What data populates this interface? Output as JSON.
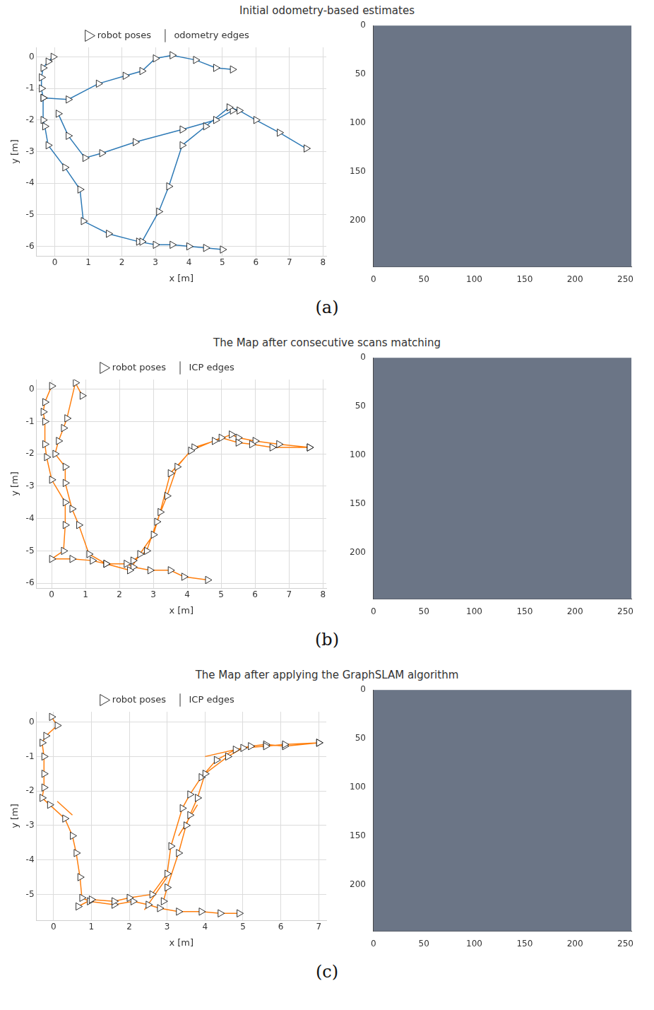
{
  "chart_data": [
    {
      "type": "line",
      "title": "Initial odometry-based estimates",
      "annotations": [
        "(a)"
      ],
      "x_label": "x [m]",
      "y_label": "y [m]",
      "xlim": [
        -0.55,
        8.1
      ],
      "ylim": [
        -6.3,
        0.3
      ],
      "xticks": [
        0,
        1,
        2,
        3,
        4,
        5,
        6,
        7,
        8
      ],
      "yticks": [
        -6,
        -5,
        -4,
        -3,
        -2,
        -1,
        0
      ],
      "grid": true,
      "legend": "top",
      "series": [
        {
          "name": "odometry edges",
          "color": "#2e7ab6",
          "marker": "none",
          "line_style": "solid",
          "x": [
            -0.05,
            -0.2,
            -0.35,
            -0.4,
            -0.4,
            -0.35,
            -0.35,
            -0.3,
            -0.2,
            0.3,
            0.75,
            0.85,
            1.6,
            2.5,
            3.0,
            3.5,
            4.0,
            4.5,
            5.0,
            null,
            -0.35,
            0.4,
            1.3,
            2.1,
            2.6,
            3.0,
            3.5,
            4.2,
            4.8,
            5.3,
            null,
            0.1,
            0.4,
            0.9,
            1.4,
            2.4,
            3.8,
            4.8,
            5.3,
            null,
            2.6,
            3.1,
            3.4,
            3.8,
            4.5,
            5.2,
            5.5,
            6.0,
            6.7,
            7.5
          ],
          "values": [
            0.0,
            -0.15,
            -0.35,
            -0.65,
            -1.0,
            -1.3,
            -2.0,
            -2.2,
            -2.8,
            -3.5,
            -4.2,
            -5.2,
            -5.6,
            -5.85,
            -5.95,
            -5.95,
            -6.0,
            -6.05,
            -6.1,
            null,
            -1.3,
            -1.35,
            -0.85,
            -0.6,
            -0.45,
            -0.05,
            0.05,
            -0.1,
            -0.35,
            -0.4,
            null,
            -1.8,
            -2.5,
            -3.2,
            -3.05,
            -2.7,
            -2.3,
            -2.0,
            -1.7,
            null,
            -5.85,
            -4.9,
            -4.1,
            -2.8,
            -2.2,
            -1.6,
            -1.7,
            -2.0,
            -2.4,
            -2.9
          ]
        },
        {
          "name": "robot poses",
          "color": "#ffffff",
          "marker": "triangle",
          "line_style": "none",
          "x": [
            -0.05,
            -0.2,
            -0.35,
            -0.4,
            -0.4,
            -0.35,
            -0.35,
            -0.3,
            -0.2,
            0.3,
            0.75,
            0.85,
            1.6,
            2.5,
            3.0,
            3.5,
            4.0,
            4.5,
            5.0,
            null,
            -0.35,
            0.4,
            1.3,
            2.1,
            2.6,
            3.0,
            3.5,
            4.2,
            4.8,
            5.3,
            null,
            0.1,
            0.4,
            0.9,
            1.4,
            2.4,
            3.8,
            4.8,
            5.3,
            null,
            2.6,
            3.1,
            3.4,
            3.8,
            4.5,
            5.2,
            5.5,
            6.0,
            6.7,
            7.5
          ],
          "values": [
            0.0,
            -0.15,
            -0.35,
            -0.65,
            -1.0,
            -1.3,
            -2.0,
            -2.2,
            -2.8,
            -3.5,
            -4.2,
            -5.2,
            -5.6,
            -5.85,
            -5.95,
            -5.95,
            -6.0,
            -6.05,
            -6.1,
            null,
            -1.3,
            -1.35,
            -0.85,
            -0.6,
            -0.45,
            -0.05,
            0.05,
            -0.1,
            -0.35,
            -0.4,
            null,
            -1.8,
            -2.5,
            -3.2,
            -3.05,
            -2.7,
            -2.3,
            -2.0,
            -1.7,
            null,
            -5.85,
            -4.9,
            -4.1,
            -2.8,
            -2.2,
            -1.6,
            -1.7,
            -2.0,
            -2.4,
            -2.9
          ]
        }
      ]
    },
    {
      "type": "image",
      "color": "#6b7586",
      "xlim": [
        0,
        256
      ],
      "ylim": [
        0,
        248
      ],
      "xticks": [
        0,
        50,
        100,
        150,
        200,
        250
      ],
      "yticks": [
        0,
        50,
        100,
        150,
        200
      ],
      "grid": false
    },
    {
      "type": "line",
      "title": "The Map after consecutive scans matching",
      "annotations": [
        "(b)"
      ],
      "x_label": "x [m]",
      "y_label": "y [m]",
      "xlim": [
        -0.45,
        8.1
      ],
      "ylim": [
        -6.15,
        0.3
      ],
      "xticks": [
        0,
        1,
        2,
        3,
        4,
        5,
        6,
        7,
        8
      ],
      "yticks": [
        -6,
        -5,
        -4,
        -3,
        -2,
        -1,
        0
      ],
      "grid": true,
      "legend": "top",
      "series": [
        {
          "name": "ICP edges",
          "color": "#ff7f0e",
          "marker": "none",
          "line_style": "solid",
          "x": [
            4.6,
            3.9,
            3.5,
            2.9,
            2.4,
            2.2,
            1.6,
            1.1,
            0.8,
            0.6,
            0.4,
            0.4,
            0.1,
            0.2,
            0.35,
            0.45,
            0.7,
            0.9,
            null,
            0.0,
            -0.2,
            -0.25,
            -0.2,
            -0.2,
            -0.15,
            0.0,
            0.4,
            0.4,
            0.35,
            0.0,
            0.6,
            1.2,
            1.6,
            2.3,
            2.6,
            3.0,
            3.2,
            3.5,
            4.2,
            4.8,
            5.3,
            5.5,
            6.0,
            6.7,
            7.6,
            null,
            2.4,
            2.8,
            3.1,
            3.4,
            3.7,
            4.1,
            5.0,
            5.5,
            5.9,
            6.5,
            7.6
          ],
          "values": [
            -5.9,
            -5.8,
            -5.6,
            -5.6,
            -5.5,
            -5.4,
            -5.4,
            -5.1,
            -4.2,
            -3.7,
            -2.9,
            -2.4,
            -2.0,
            -1.6,
            -1.2,
            -0.9,
            0.2,
            -0.2,
            null,
            0.1,
            -0.4,
            -0.7,
            -1.0,
            -1.7,
            -2.1,
            -2.8,
            -3.5,
            -4.2,
            -5.0,
            -5.25,
            -5.25,
            -5.3,
            -5.4,
            -5.6,
            -5.1,
            -4.5,
            -3.8,
            -2.6,
            -1.8,
            -1.6,
            -1.4,
            -1.5,
            -1.6,
            -1.7,
            -1.8,
            null,
            -5.3,
            -5.0,
            -4.1,
            -3.3,
            -2.4,
            -1.9,
            -1.5,
            -1.65,
            -1.7,
            -1.8,
            -1.8
          ]
        },
        {
          "name": "robot poses",
          "color": "#ffffff",
          "marker": "triangle",
          "line_style": "none",
          "x": [
            4.6,
            3.9,
            3.5,
            2.9,
            2.4,
            2.2,
            1.6,
            1.1,
            0.8,
            0.6,
            0.4,
            0.4,
            0.1,
            0.2,
            0.35,
            0.45,
            0.7,
            0.9,
            null,
            0.0,
            -0.2,
            -0.25,
            -0.2,
            -0.2,
            -0.15,
            0.0,
            0.4,
            0.4,
            0.35,
            0.0,
            0.6,
            1.2,
            1.6,
            2.3,
            2.6,
            3.0,
            3.2,
            3.5,
            4.2,
            4.8,
            5.3,
            5.5,
            6.0,
            6.7,
            7.6,
            null,
            2.4,
            2.8,
            3.1,
            3.4,
            3.7,
            4.1,
            5.0,
            5.5,
            5.9,
            6.5,
            7.6
          ],
          "values": [
            -5.9,
            -5.8,
            -5.6,
            -5.6,
            -5.5,
            -5.4,
            -5.4,
            -5.1,
            -4.2,
            -3.7,
            -2.9,
            -2.4,
            -2.0,
            -1.6,
            -1.2,
            -0.9,
            0.2,
            -0.2,
            null,
            0.1,
            -0.4,
            -0.7,
            -1.0,
            -1.7,
            -2.1,
            -2.8,
            -3.5,
            -4.2,
            -5.0,
            -5.25,
            -5.25,
            -5.3,
            -5.4,
            -5.6,
            -5.1,
            -4.5,
            -3.8,
            -2.6,
            -1.8,
            -1.6,
            -1.4,
            -1.5,
            -1.6,
            -1.7,
            -1.8,
            null,
            -5.3,
            -5.0,
            -4.1,
            -3.3,
            -2.4,
            -1.9,
            -1.5,
            -1.65,
            -1.7,
            -1.8,
            -1.8
          ]
        }
      ]
    },
    {
      "type": "image",
      "color": "#6b7586",
      "xlim": [
        0,
        256
      ],
      "ylim": [
        0,
        248
      ],
      "xticks": [
        0,
        50,
        100,
        150,
        200,
        250
      ],
      "yticks": [
        0,
        50,
        100,
        150,
        200
      ],
      "grid": false
    },
    {
      "type": "line",
      "title": "The Map after applying the GraphSLAM algorithm",
      "annotations": [
        "(c)"
      ],
      "x_label": "x [m]",
      "y_label": "y [m]",
      "xlim": [
        -0.45,
        7.2
      ],
      "ylim": [
        -5.75,
        0.3
      ],
      "xticks": [
        0,
        1,
        2,
        3,
        4,
        5,
        6,
        7
      ],
      "yticks": [
        -5,
        -4,
        -3,
        -2,
        -1,
        0
      ],
      "grid": true,
      "legend": "top",
      "series": [
        {
          "name": "ICP edges",
          "color": "#ff7f0e",
          "marker": "none",
          "line_style": "solid",
          "x": [
            -0.05,
            0.1,
            -0.2,
            -0.3,
            -0.25,
            -0.25,
            -0.25,
            -0.3,
            -0.1,
            0.3,
            0.5,
            0.6,
            0.7,
            0.75,
            0.95,
            1.6,
            2.1,
            2.5,
            2.8,
            3.3,
            3.9,
            4.4,
            4.9,
            null,
            0.65,
            1.0,
            1.6,
            2.0,
            2.6,
            3.0,
            3.1,
            3.4,
            3.6,
            3.9,
            4.3,
            4.8,
            5.2,
            5.6,
            6.1,
            7.0,
            null,
            2.9,
            3.0,
            3.3,
            3.5,
            3.6,
            3.8,
            4.0,
            4.6,
            5.0,
            5.6,
            6.1,
            7.0,
            null,
            0.1,
            0.5,
            null,
            2.4,
            3.0,
            null,
            3.3,
            3.8,
            null,
            4.0,
            5.2
          ],
          "values": [
            0.15,
            -0.1,
            -0.4,
            -0.6,
            -1.0,
            -1.5,
            -1.9,
            -2.2,
            -2.4,
            -2.8,
            -3.3,
            -3.8,
            -4.5,
            -5.1,
            -5.2,
            -5.3,
            -5.2,
            -5.3,
            -5.4,
            -5.5,
            -5.5,
            -5.55,
            -5.55,
            null,
            -5.35,
            -5.15,
            -5.2,
            -5.1,
            -5.0,
            -4.4,
            -3.6,
            -2.5,
            -2.1,
            -1.6,
            -1.1,
            -0.8,
            -0.7,
            -0.65,
            -0.7,
            -0.6,
            null,
            -5.2,
            -4.8,
            -3.8,
            -3.0,
            -2.7,
            -2.2,
            -1.5,
            -1.0,
            -0.75,
            -0.7,
            -0.65,
            -0.6,
            null,
            -2.3,
            -2.7,
            null,
            -5.45,
            -4.5,
            null,
            -3.3,
            -2.4,
            null,
            -1.0,
            -0.7
          ]
        },
        {
          "name": "robot poses",
          "color": "#ffffff",
          "marker": "triangle",
          "line_style": "none",
          "x": [
            -0.05,
            0.1,
            -0.2,
            -0.3,
            -0.25,
            -0.25,
            -0.25,
            -0.3,
            -0.1,
            0.3,
            0.5,
            0.6,
            0.7,
            0.75,
            0.95,
            1.6,
            2.1,
            2.5,
            2.8,
            3.3,
            3.9,
            4.4,
            4.9,
            null,
            0.65,
            1.0,
            1.6,
            2.0,
            2.6,
            3.0,
            3.1,
            3.4,
            3.6,
            3.9,
            4.3,
            4.8,
            5.2,
            5.6,
            6.1,
            7.0,
            null,
            2.9,
            3.0,
            3.3,
            3.5,
            3.6,
            3.8,
            4.0,
            4.6,
            5.0,
            5.6,
            6.1,
            7.0
          ],
          "values": [
            0.15,
            -0.1,
            -0.4,
            -0.6,
            -1.0,
            -1.5,
            -1.9,
            -2.2,
            -2.4,
            -2.8,
            -3.3,
            -3.8,
            -4.5,
            -5.1,
            -5.2,
            -5.3,
            -5.2,
            -5.3,
            -5.4,
            -5.5,
            -5.5,
            -5.55,
            -5.55,
            null,
            -5.35,
            -5.15,
            -5.2,
            -5.1,
            -5.0,
            -4.4,
            -3.6,
            -2.5,
            -2.1,
            -1.6,
            -1.1,
            -0.8,
            -0.7,
            -0.65,
            -0.7,
            -0.6,
            null,
            -5.2,
            -4.8,
            -3.8,
            -3.0,
            -2.7,
            -2.2,
            -1.5,
            -1.0,
            -0.75,
            -0.7,
            -0.65,
            -0.6
          ]
        }
      ]
    },
    {
      "type": "image",
      "color": "#6b7586",
      "xlim": [
        0,
        256
      ],
      "ylim": [
        0,
        248
      ],
      "xticks": [
        0,
        50,
        100,
        150,
        200,
        250
      ],
      "yticks": [
        0,
        50,
        100,
        150,
        200
      ],
      "grid": false
    }
  ]
}
